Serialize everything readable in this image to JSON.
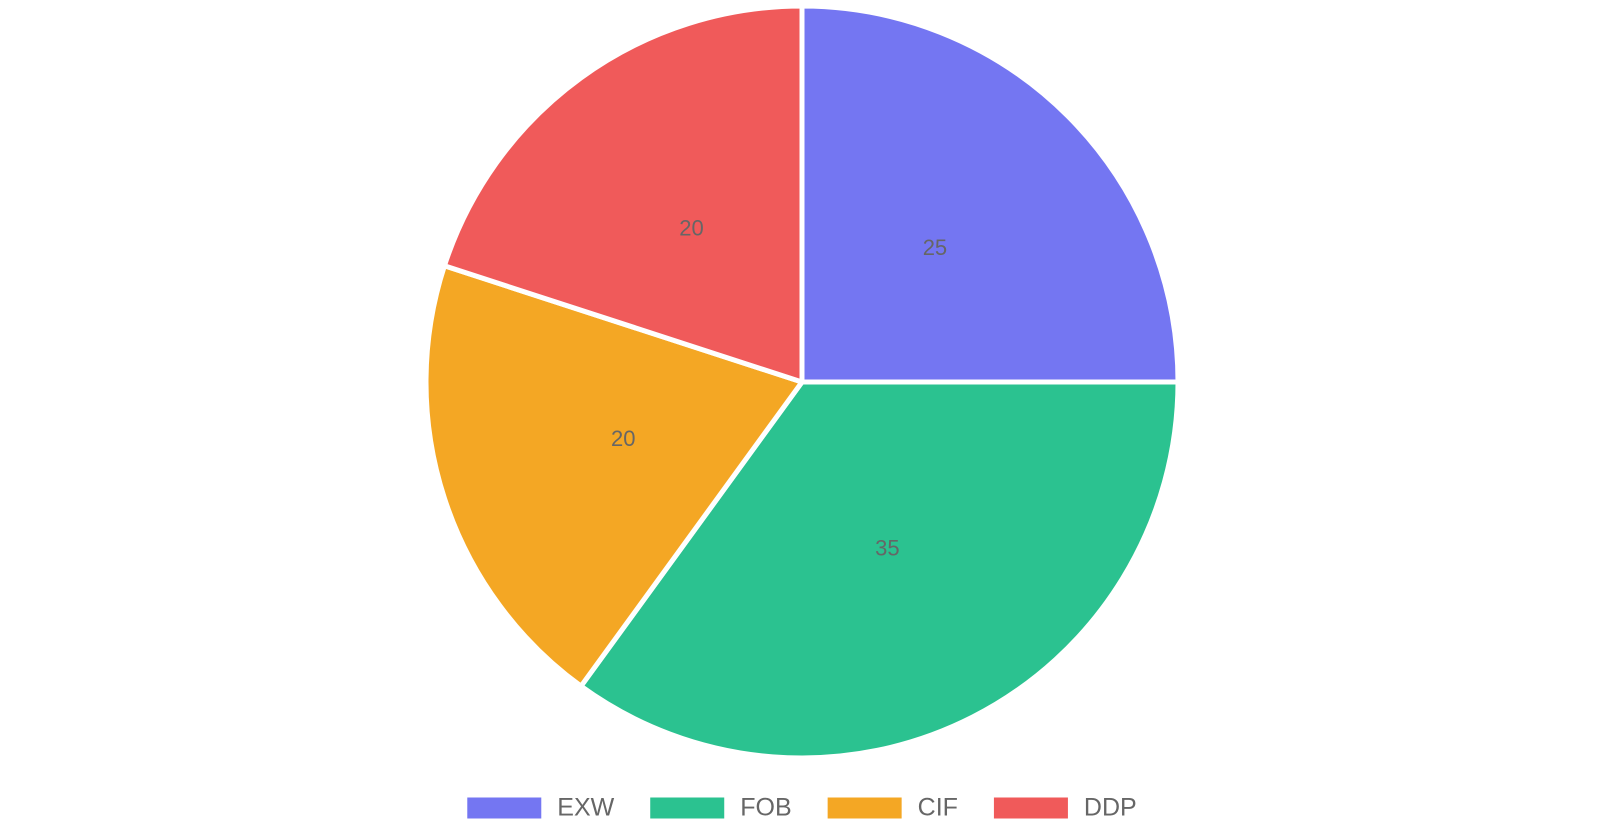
{
  "chart_data": {
    "type": "pie",
    "categories": [
      "EXW",
      "FOB",
      "CIF",
      "DDP"
    ],
    "values": [
      25,
      35,
      20,
      20
    ],
    "colors": [
      "#7476f2",
      "#2bc290",
      "#f4a724",
      "#f05a5a"
    ],
    "legend": "bottom"
  }
}
